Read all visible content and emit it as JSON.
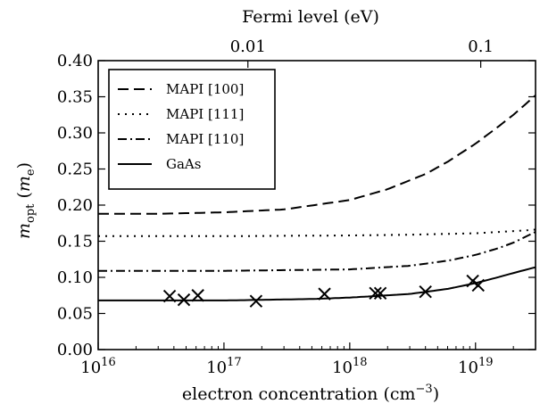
{
  "chart_data": {
    "type": "line",
    "xlabel": {
      "main": "electron concentration (cm",
      "sup": "−3",
      "tail": ")"
    },
    "ylabel": {
      "m": "m",
      "sub": "opt",
      "unit_open": " (",
      "unit_m": "m",
      "unit_sub": "e",
      "unit_close": ")"
    },
    "top_xlabel": "Fermi level (eV)",
    "x_scale": "log",
    "xlim": [
      1e+16,
      3e+19
    ],
    "ylim": [
      0.0,
      0.4
    ],
    "x_ticks": [
      {
        "value": 1e+16,
        "base": "10",
        "exp": "16"
      },
      {
        "value": 1e+17,
        "base": "10",
        "exp": "17"
      },
      {
        "value": 1e+18,
        "base": "10",
        "exp": "18"
      },
      {
        "value": 1e+19,
        "base": "10",
        "exp": "19"
      }
    ],
    "y_ticks": [
      {
        "value": 0.0,
        "label": "0.00"
      },
      {
        "value": 0.05,
        "label": "0.05"
      },
      {
        "value": 0.1,
        "label": "0.10"
      },
      {
        "value": 0.15,
        "label": "0.15"
      },
      {
        "value": 0.2,
        "label": "0.20"
      },
      {
        "value": 0.25,
        "label": "0.25"
      },
      {
        "value": 0.3,
        "label": "0.30"
      },
      {
        "value": 0.35,
        "label": "0.35"
      },
      {
        "value": 0.4,
        "label": "0.40"
      }
    ],
    "top_ticks": [
      {
        "at_concentration": 1.55e+17,
        "label": "0.01"
      },
      {
        "at_concentration": 1.1e+19,
        "label": "0.1"
      }
    ],
    "legend_position": "top-left",
    "series": [
      {
        "name": "MAPI [100]",
        "style": "dashed",
        "x": [
          1e+16,
          3e+16,
          1e+17,
          3e+17,
          1e+18,
          2e+18,
          4e+18,
          6e+18,
          1e+19,
          1.5e+19,
          2e+19,
          3e+19
        ],
        "y": [
          0.188,
          0.188,
          0.19,
          0.194,
          0.207,
          0.222,
          0.243,
          0.26,
          0.285,
          0.308,
          0.325,
          0.352
        ]
      },
      {
        "name": "MAPI [111]",
        "style": "dotted",
        "x": [
          1e+16,
          1e+17,
          1e+18,
          3e+18,
          1e+19,
          2e+19,
          3e+19
        ],
        "y": [
          0.157,
          0.157,
          0.158,
          0.159,
          0.161,
          0.164,
          0.166
        ]
      },
      {
        "name": "MAPI [110]",
        "style": "dashdot",
        "x": [
          1e+16,
          1e+17,
          1e+18,
          3e+18,
          6e+18,
          1e+19,
          1.5e+19,
          2e+19,
          3e+19
        ],
        "y": [
          0.109,
          0.109,
          0.111,
          0.116,
          0.123,
          0.131,
          0.14,
          0.148,
          0.163
        ]
      },
      {
        "name": "GaAs",
        "style": "solid",
        "x": [
          1e+16,
          1e+17,
          5e+17,
          1e+18,
          3e+18,
          6e+18,
          1e+19,
          1.5e+19,
          2e+19,
          3e+19
        ],
        "y": [
          0.068,
          0.068,
          0.07,
          0.072,
          0.077,
          0.084,
          0.092,
          0.1,
          0.106,
          0.114
        ]
      },
      {
        "name": "",
        "style": "markers",
        "x": [
          3.7e+16,
          4.8e+16,
          6.2e+16,
          1.8e+17,
          6.3e+17,
          1.6e+18,
          1.75e+18,
          4e+18,
          9.5e+18,
          1.05e+19
        ],
        "y": [
          0.074,
          0.069,
          0.075,
          0.067,
          0.077,
          0.078,
          0.078,
          0.08,
          0.095,
          0.089
        ]
      }
    ]
  }
}
